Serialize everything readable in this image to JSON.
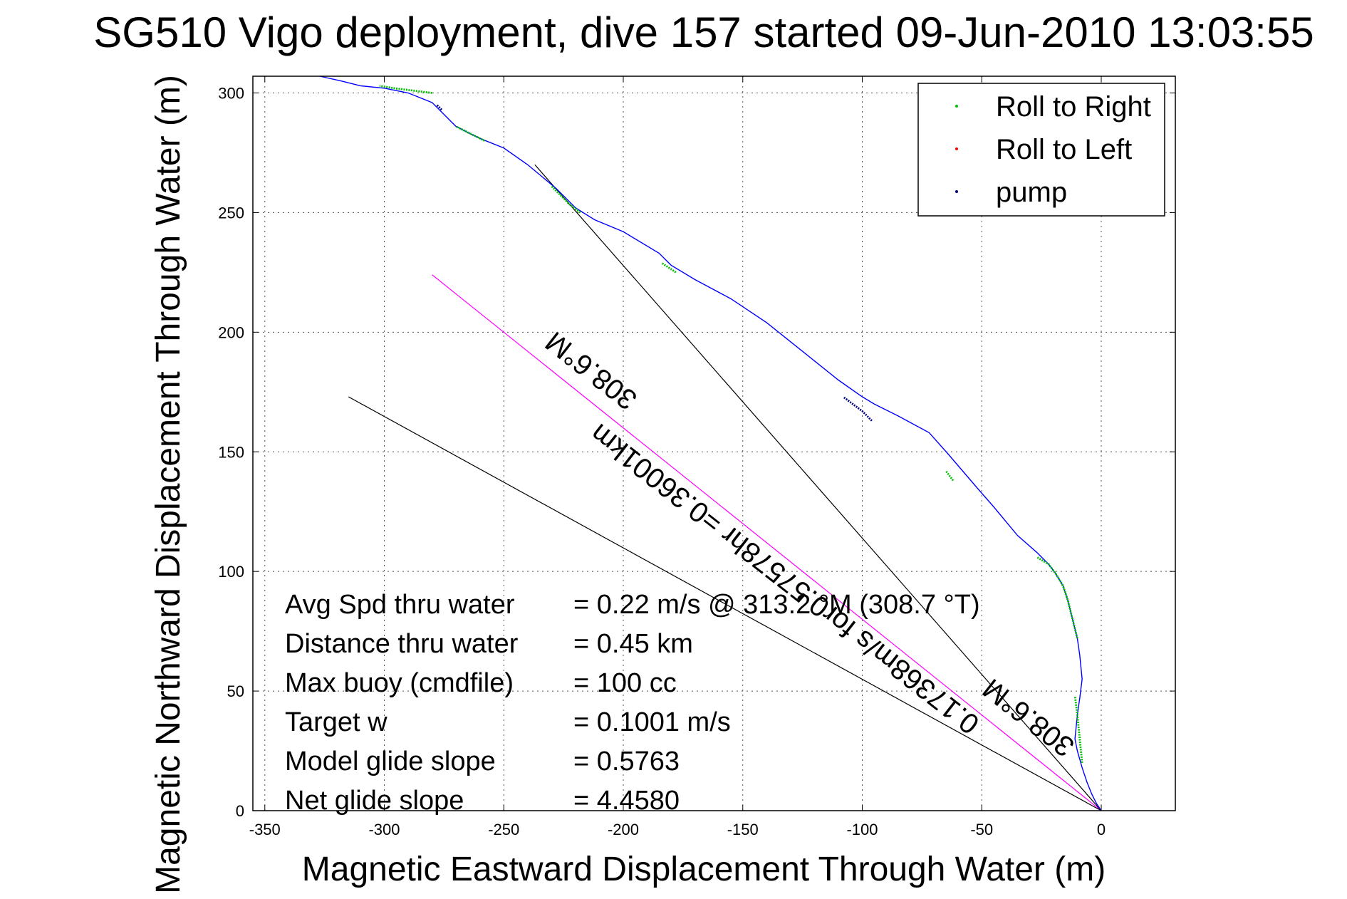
{
  "chart_data": {
    "type": "scatter",
    "title": "SG510 Vigo deployment, dive 157 started 09-Jun-2010 13:03:55",
    "xlabel": "Magnetic Eastward Displacement Through Water (m)",
    "ylabel": "Magnetic Northward Displacement Through Water (m)",
    "xlim": [
      -355,
      31
    ],
    "ylim": [
      0,
      307
    ],
    "xticks": [
      -350,
      -300,
      -250,
      -200,
      -150,
      -100,
      -50,
      0
    ],
    "yticks": [
      0,
      50,
      100,
      150,
      200,
      250,
      300
    ],
    "grid": true,
    "legend_position": "top-right",
    "legend": [
      {
        "label": "Roll to Right",
        "color": "#00c000"
      },
      {
        "label": "Roll to Left",
        "color": "#ff0000"
      },
      {
        "label": "pump",
        "color": "#000080"
      }
    ],
    "series": [
      {
        "name": "track",
        "color": "#0000ff",
        "x": [
          0,
          -2,
          -4,
          -6,
          -8,
          -10,
          -11,
          -10,
          -9,
          -8,
          -9,
          -10,
          -12,
          -14,
          -16,
          -19,
          -22,
          -27,
          -35,
          -45,
          -52,
          -58,
          -64,
          -72,
          -85,
          -95,
          -100,
          -110,
          -125,
          -140,
          -155,
          -170,
          -180,
          -185,
          -200,
          -212,
          -220,
          -228,
          -240,
          -250,
          -260,
          -270,
          -276,
          -280,
          -290,
          -300,
          -310,
          -318,
          -327
        ],
        "y": [
          0,
          3,
          7,
          12,
          18,
          25,
          30,
          40,
          47,
          55,
          65,
          72,
          80,
          88,
          94,
          99,
          103,
          108,
          115,
          127,
          135,
          142,
          149,
          158,
          165,
          170,
          173,
          180,
          192,
          204,
          214,
          222,
          228,
          233,
          242,
          247,
          252,
          260,
          270,
          277,
          281,
          286,
          292,
          296,
          300,
          302,
          303,
          305,
          307
        ]
      },
      {
        "name": "Roll to Right",
        "color": "#00c000",
        "segments": [
          {
            "x": [
              -8,
              -9,
              -10,
              -11
            ],
            "y": [
              20,
              30,
              40,
              48
            ]
          },
          {
            "x": [
              -10,
              -12,
              -14,
              -16,
              -19,
              -22,
              -27
            ],
            "y": [
              72,
              80,
              88,
              94,
              99,
              103,
              106
            ]
          },
          {
            "x": [
              -62,
              -65
            ],
            "y": [
              138,
              142
            ]
          },
          {
            "x": [
              -178,
              -184
            ],
            "y": [
              225,
              229
            ]
          },
          {
            "x": [
              -218,
              -222,
              -226,
              -230
            ],
            "y": [
              250,
              253,
              257,
              261
            ]
          },
          {
            "x": [
              -258,
              -264,
              -270
            ],
            "y": [
              280,
              283,
              286
            ]
          },
          {
            "x": [
              -280,
              -288,
              -296,
              -302
            ],
            "y": [
              300,
              301,
              302,
              303
            ]
          }
        ]
      },
      {
        "name": "pump",
        "color": "#000080",
        "segments": [
          {
            "x": [
              -96,
              -100,
              -104,
              -108
            ],
            "y": [
              163,
              167,
              170,
              173
            ]
          },
          {
            "x": [
              -276,
              -278
            ],
            "y": [
              293,
              295
            ]
          }
        ]
      }
    ],
    "reference_lines": [
      {
        "name": "magenta-heading",
        "color": "#ff00ff",
        "x": [
          0,
          -280
        ],
        "y": [
          0,
          224
        ]
      },
      {
        "name": "black-heading-1",
        "color": "#000000",
        "x": [
          0,
          -237
        ],
        "y": [
          0,
          270
        ]
      },
      {
        "name": "black-heading-2",
        "color": "#000000",
        "x": [
          0,
          -315
        ],
        "y": [
          0,
          173
        ]
      }
    ],
    "line_labels": [
      {
        "text": "308.6°M",
        "x": -211,
        "y": 187,
        "rotation": 218
      },
      {
        "text": "0.17368m/s for0.57578hr =0.36001km",
        "x": -130,
        "y": 100,
        "rotation": 218
      },
      {
        "text": "308.6°M",
        "x": -28,
        "y": 42,
        "rotation": 218
      }
    ],
    "annotations": [
      {
        "label": "Avg Spd thru water",
        "value": "=  0.22 m/s @ 313.2 °M (308.7 °T)"
      },
      {
        "label": "Distance thru water",
        "value": "=  0.45 km"
      },
      {
        "label": "Max buoy (cmdfile)",
        "value": "= 100 cc"
      },
      {
        "label": "Target w",
        "value": "= 0.1001 m/s"
      },
      {
        "label": "Model glide slope",
        "value": "= 0.5763"
      },
      {
        "label": "Net glide slope",
        "value": "= 4.4580"
      }
    ]
  }
}
